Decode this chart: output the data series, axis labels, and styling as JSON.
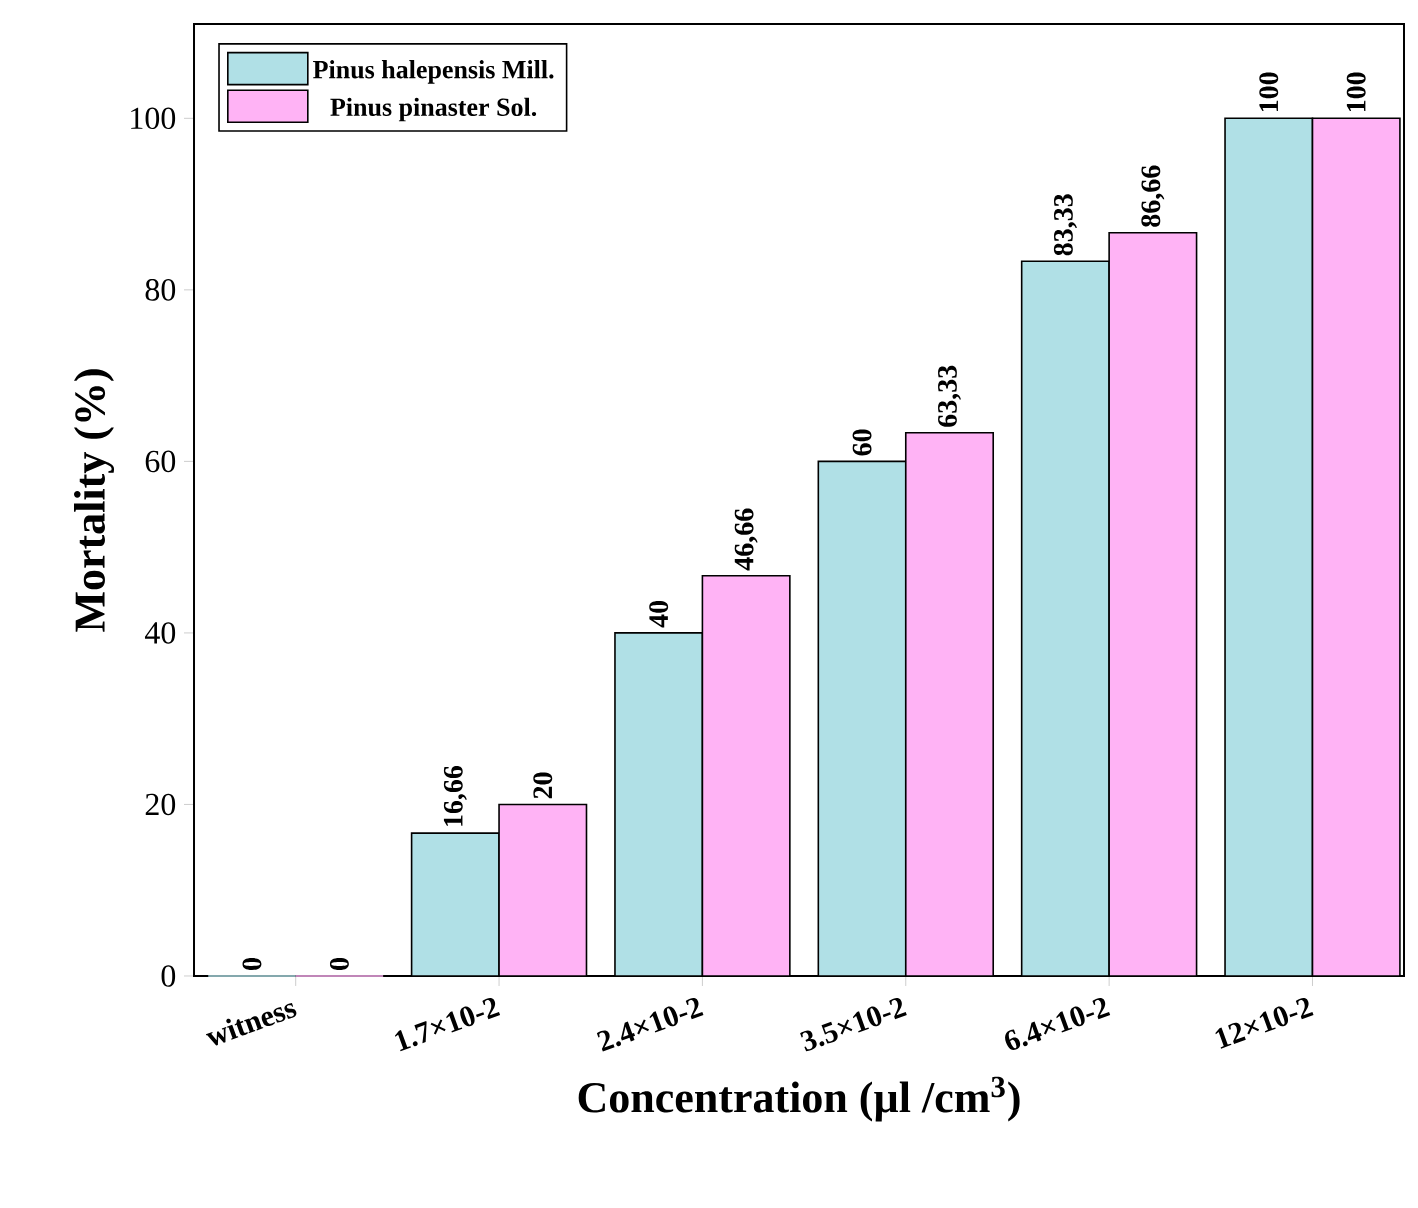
{
  "chart_data": {
    "type": "bar",
    "xlabel": "Concentration (µl /cm$^{3}$)",
    "ylabel": "Mortality (%)",
    "categories": [
      "witness",
      "1.7×10-2",
      "2.4×10-2",
      "3.5×10-2",
      "6.4×10-2",
      "12×10-2"
    ],
    "series": [
      {
        "name": "Pinus halepensis Mill.",
        "color": "#b0e0e6",
        "values": [
          0,
          16.66,
          40,
          60,
          83.33,
          100
        ],
        "value_labels": [
          "0",
          "16,66",
          "40",
          "60",
          "83,33",
          "100"
        ]
      },
      {
        "name": "Pinus pinaster Sol.",
        "color": "#ffb3f5",
        "values": [
          0,
          20,
          46.66,
          63.33,
          86.66,
          100
        ],
        "value_labels": [
          "0",
          "20",
          "46,66",
          "63,33",
          "86,66",
          "100"
        ]
      }
    ],
    "ylim": [
      0,
      111
    ],
    "yticks": [
      0,
      20,
      40,
      60,
      80,
      100
    ],
    "legend": "top left"
  }
}
